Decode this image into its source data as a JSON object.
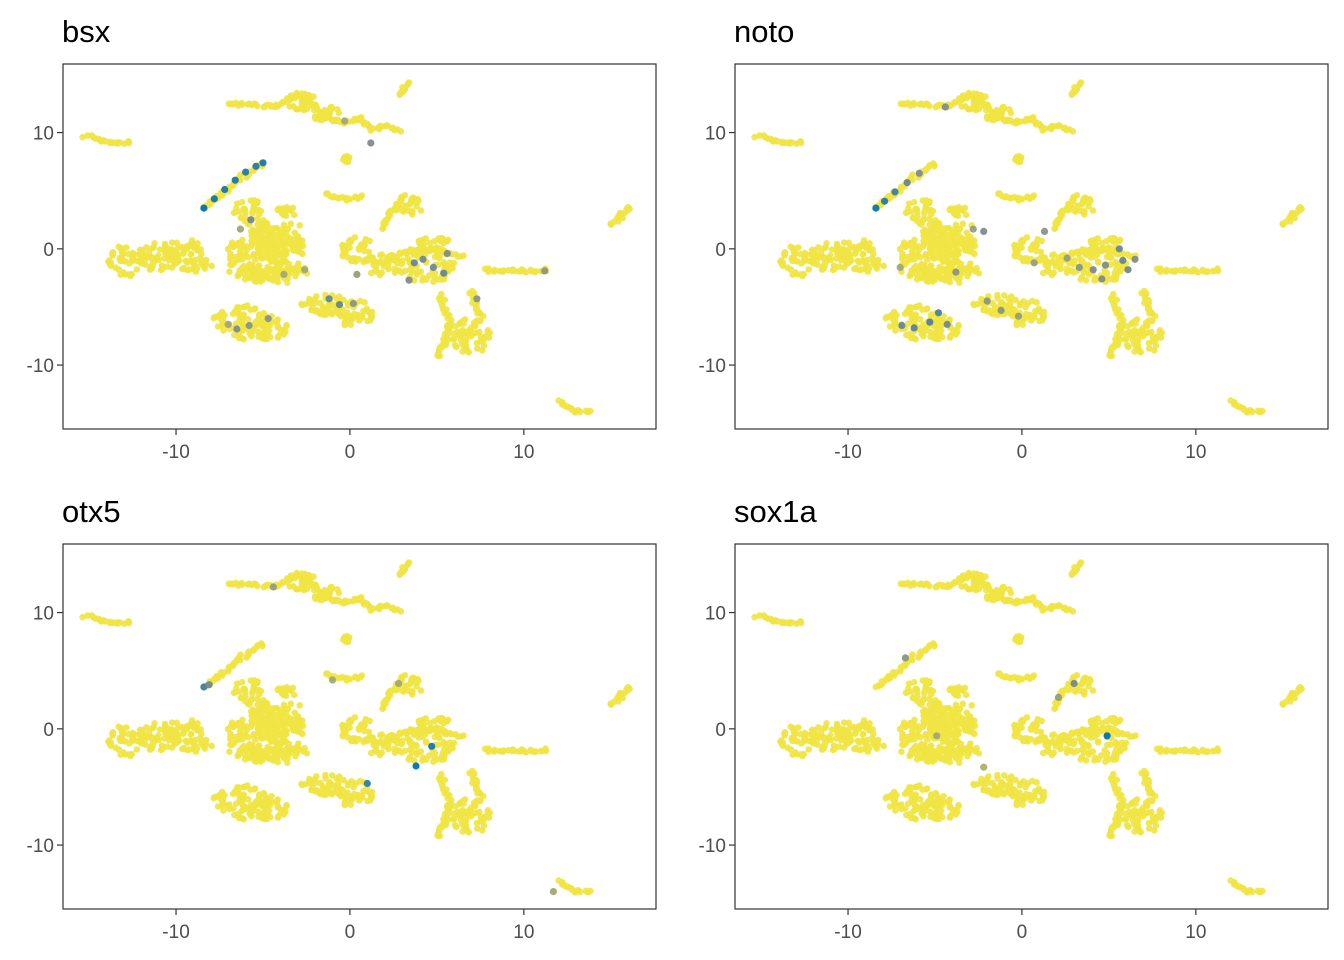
{
  "chart_data": [
    {
      "type": "scatter",
      "title": "bsx",
      "xlim": [
        -16.5,
        17.6
      ],
      "ylim": [
        -15.5,
        15.9
      ],
      "xticks": [
        -10,
        0,
        10
      ],
      "yticks": [
        10,
        0,
        -10
      ],
      "xtick_labels": [
        "-10",
        "0",
        "10"
      ],
      "ytick_labels": [
        "10",
        "0",
        "-10"
      ],
      "color_low": "#f0e442",
      "color_mid": "#7f8c8d",
      "color_high": "#0072b2",
      "grid": false,
      "legend": "none",
      "highlights": [
        {
          "x": -8.4,
          "y": 3.5,
          "level": 1.0
        },
        {
          "x": -7.8,
          "y": 4.3,
          "level": 0.95
        },
        {
          "x": -7.2,
          "y": 5.1,
          "level": 0.9
        },
        {
          "x": -6.6,
          "y": 5.9,
          "level": 0.9
        },
        {
          "x": -6.0,
          "y": 6.6,
          "level": 0.85
        },
        {
          "x": -5.4,
          "y": 7.1,
          "level": 0.85
        },
        {
          "x": -5.0,
          "y": 7.4,
          "level": 0.9
        },
        {
          "x": -5.7,
          "y": 2.5,
          "level": 0.55
        },
        {
          "x": -6.3,
          "y": 1.7,
          "level": 0.35
        },
        {
          "x": -6.5,
          "y": -6.9,
          "level": 0.5
        },
        {
          "x": -5.8,
          "y": -6.6,
          "level": 0.45
        },
        {
          "x": -4.7,
          "y": -6.0,
          "level": 0.45
        },
        {
          "x": -7.0,
          "y": -6.5,
          "level": 0.35
        },
        {
          "x": -1.2,
          "y": -4.3,
          "level": 0.6
        },
        {
          "x": -0.6,
          "y": -4.8,
          "level": 0.6
        },
        {
          "x": 0.2,
          "y": -4.7,
          "level": 0.45
        },
        {
          "x": 1.2,
          "y": 9.1,
          "level": 0.5
        },
        {
          "x": -0.3,
          "y": 11.0,
          "level": 0.35
        },
        {
          "x": 3.7,
          "y": -1.2,
          "level": 0.6
        },
        {
          "x": 4.2,
          "y": -0.9,
          "level": 0.55
        },
        {
          "x": 4.8,
          "y": -1.6,
          "level": 0.55
        },
        {
          "x": 5.4,
          "y": -2.1,
          "level": 0.6
        },
        {
          "x": 5.6,
          "y": -0.4,
          "level": 0.5
        },
        {
          "x": 3.4,
          "y": -2.7,
          "level": 0.5
        },
        {
          "x": 7.3,
          "y": -4.3,
          "level": 0.45
        },
        {
          "x": 11.2,
          "y": -1.9,
          "level": 0.45
        },
        {
          "x": 0.4,
          "y": -2.2,
          "level": 0.4
        },
        {
          "x": -3.8,
          "y": -2.2,
          "level": 0.35
        },
        {
          "x": -2.6,
          "y": -1.8,
          "level": 0.35
        }
      ]
    },
    {
      "type": "scatter",
      "title": "noto",
      "xlim": [
        -16.5,
        17.6
      ],
      "ylim": [
        -15.5,
        15.9
      ],
      "xticks": [
        -10,
        0,
        10
      ],
      "yticks": [
        10,
        0,
        -10
      ],
      "xtick_labels": [
        "-10",
        "0",
        "10"
      ],
      "ytick_labels": [
        "10",
        "0",
        "-10"
      ],
      "color_low": "#f0e442",
      "color_mid": "#7f8c8d",
      "color_high": "#0072b2",
      "grid": false,
      "legend": "none",
      "highlights": [
        {
          "x": -8.4,
          "y": 3.5,
          "level": 0.95
        },
        {
          "x": -7.9,
          "y": 4.1,
          "level": 0.85
        },
        {
          "x": -7.3,
          "y": 4.9,
          "level": 0.75
        },
        {
          "x": -6.6,
          "y": 5.7,
          "level": 0.6
        },
        {
          "x": -5.9,
          "y": 6.5,
          "level": 0.5
        },
        {
          "x": -4.8,
          "y": -5.5,
          "level": 0.7
        },
        {
          "x": -5.3,
          "y": -6.3,
          "level": 0.7
        },
        {
          "x": -6.2,
          "y": -6.8,
          "level": 0.65
        },
        {
          "x": -6.9,
          "y": -6.6,
          "level": 0.6
        },
        {
          "x": -4.3,
          "y": -6.5,
          "level": 0.55
        },
        {
          "x": -2.2,
          "y": 1.5,
          "level": 0.5
        },
        {
          "x": -2.8,
          "y": 1.7,
          "level": 0.4
        },
        {
          "x": -3.8,
          "y": -2.0,
          "level": 0.45
        },
        {
          "x": -2.0,
          "y": -4.5,
          "level": 0.45
        },
        {
          "x": -1.2,
          "y": -5.3,
          "level": 0.45
        },
        {
          "x": -0.2,
          "y": -5.8,
          "level": 0.4
        },
        {
          "x": -4.4,
          "y": 12.2,
          "level": 0.5
        },
        {
          "x": 1.3,
          "y": 1.5,
          "level": 0.45
        },
        {
          "x": 5.6,
          "y": 0.0,
          "level": 0.6
        },
        {
          "x": 5.8,
          "y": -1.0,
          "level": 0.6
        },
        {
          "x": 6.1,
          "y": -1.8,
          "level": 0.55
        },
        {
          "x": 4.8,
          "y": -1.4,
          "level": 0.5
        },
        {
          "x": 4.1,
          "y": -1.8,
          "level": 0.5
        },
        {
          "x": 3.3,
          "y": -1.6,
          "level": 0.45
        },
        {
          "x": 2.6,
          "y": -0.8,
          "level": 0.4
        },
        {
          "x": 4.6,
          "y": -2.6,
          "level": 0.5
        },
        {
          "x": 6.5,
          "y": -0.9,
          "level": 0.5
        },
        {
          "x": 0.7,
          "y": -1.2,
          "level": 0.4
        },
        {
          "x": -7.0,
          "y": -1.6,
          "level": 0.35
        }
      ]
    },
    {
      "type": "scatter",
      "title": "otx5",
      "xlim": [
        -16.5,
        17.6
      ],
      "ylim": [
        -15.5,
        15.9
      ],
      "xticks": [
        -10,
        0,
        10
      ],
      "yticks": [
        10,
        0,
        -10
      ],
      "xtick_labels": [
        "-10",
        "0",
        "10"
      ],
      "ytick_labels": [
        "10",
        "0",
        "-10"
      ],
      "color_low": "#f0e442",
      "color_mid": "#7f8c8d",
      "color_high": "#0072b2",
      "grid": false,
      "legend": "none",
      "highlights": [
        {
          "x": -8.4,
          "y": 3.6,
          "level": 0.75
        },
        {
          "x": -8.1,
          "y": 3.8,
          "level": 0.55
        },
        {
          "x": -4.4,
          "y": 12.2,
          "level": 0.4
        },
        {
          "x": 3.8,
          "y": -3.2,
          "level": 1.0
        },
        {
          "x": 4.7,
          "y": -1.5,
          "level": 0.9
        },
        {
          "x": 1.0,
          "y": -4.7,
          "level": 0.8
        },
        {
          "x": -1.0,
          "y": 4.2,
          "level": 0.35
        },
        {
          "x": 2.8,
          "y": 3.9,
          "level": 0.35
        },
        {
          "x": 11.7,
          "y": -14.0,
          "level": 0.35
        }
      ]
    },
    {
      "type": "scatter",
      "title": "sox1a",
      "xlim": [
        -16.5,
        17.6
      ],
      "ylim": [
        -15.5,
        15.9
      ],
      "xticks": [
        -10,
        0,
        10
      ],
      "yticks": [
        10,
        0,
        -10
      ],
      "xtick_labels": [
        "-10",
        "0",
        "10"
      ],
      "ytick_labels": [
        "10",
        "0",
        "-10"
      ],
      "color_low": "#f0e442",
      "color_mid": "#7f8c8d",
      "color_high": "#0072b2",
      "grid": false,
      "legend": "none",
      "highlights": [
        {
          "x": 4.9,
          "y": -0.6,
          "level": 1.0
        },
        {
          "x": 3.0,
          "y": 3.9,
          "level": 0.55
        },
        {
          "x": 2.1,
          "y": 2.7,
          "level": 0.4
        },
        {
          "x": -6.7,
          "y": 6.1,
          "level": 0.45
        },
        {
          "x": -4.9,
          "y": -0.6,
          "level": 0.35
        },
        {
          "x": -2.2,
          "y": -3.3,
          "level": 0.3
        }
      ]
    }
  ]
}
